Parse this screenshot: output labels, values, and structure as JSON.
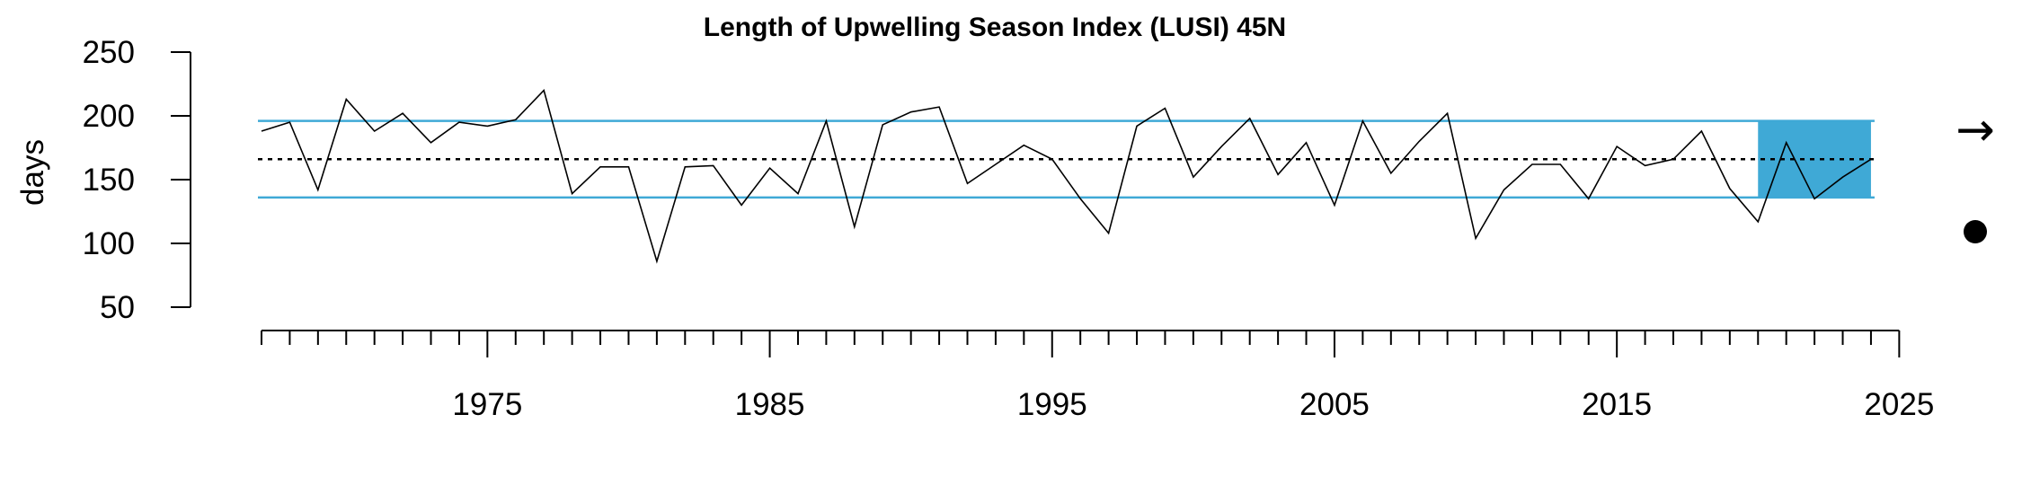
{
  "chart_data": {
    "type": "line",
    "title": "Length of Upwelling Season Index (LUSI) 45N",
    "ylabel": "days",
    "xlabel": "",
    "x_tick_labels": [
      "1975",
      "1985",
      "1995",
      "2005",
      "2015",
      "2025"
    ],
    "y_tick_labels": [
      "50",
      "100",
      "150",
      "200",
      "250"
    ],
    "ylim": [
      50,
      250
    ],
    "xlim": [
      1967,
      2025
    ],
    "mean": 166,
    "sd_band": [
      136,
      196
    ],
    "recent_window": [
      2020,
      2024
    ],
    "trend_symbol": "→",
    "colors": {
      "line": "#000000",
      "band": "#3fa9d6",
      "mean": "#000000"
    },
    "series": [
      {
        "x": [
          1967,
          1968,
          1969,
          1970,
          1971,
          1972,
          1973,
          1974,
          1975,
          1976,
          1977,
          1978,
          1979,
          1980,
          1981,
          1982,
          1983,
          1984,
          1985,
          1986,
          1987,
          1988,
          1989,
          1990,
          1991,
          1992,
          1993,
          1994,
          1995,
          1996,
          1997,
          1998,
          1999,
          2000,
          2001,
          2002,
          2003,
          2004,
          2005,
          2006,
          2007,
          2008,
          2009,
          2010,
          2011,
          2012,
          2013,
          2014,
          2015,
          2016,
          2017,
          2018,
          2019,
          2020,
          2021,
          2022,
          2023,
          2024
        ],
        "values": [
          188,
          195,
          142,
          213,
          188,
          202,
          179,
          195,
          192,
          197,
          220,
          139,
          160,
          160,
          86,
          160,
          161,
          130,
          159,
          139,
          196,
          113,
          193,
          203,
          207,
          147,
          162,
          177,
          166,
          135,
          108,
          192,
          206,
          152,
          176,
          198,
          154,
          179,
          130,
          196,
          155,
          180,
          202,
          104,
          142,
          162,
          162,
          135,
          176,
          161,
          166,
          188,
          143,
          117,
          179,
          135,
          152,
          166
        ]
      }
    ]
  }
}
